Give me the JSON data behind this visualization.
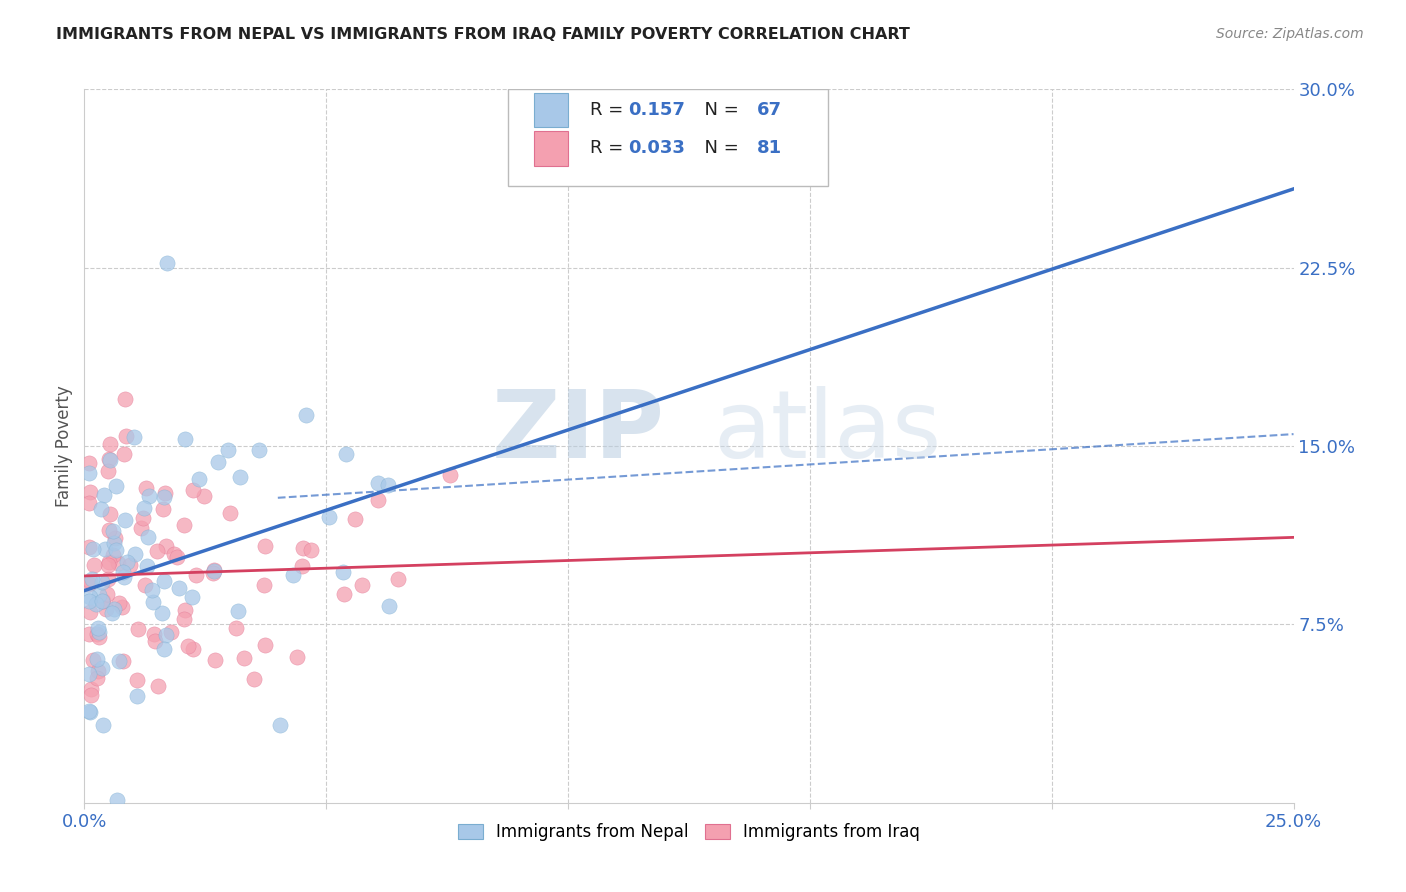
{
  "title": "IMMIGRANTS FROM NEPAL VS IMMIGRANTS FROM IRAQ FAMILY POVERTY CORRELATION CHART",
  "source": "Source: ZipAtlas.com",
  "ylabel": "Family Poverty",
  "xlim": [
    0.0,
    0.25
  ],
  "ylim": [
    0.0,
    0.3
  ],
  "ytick_right_labels": [
    "7.5%",
    "15.0%",
    "22.5%",
    "30.0%"
  ],
  "ytick_right_values": [
    0.075,
    0.15,
    0.225,
    0.3
  ],
  "nepal_R": 0.157,
  "nepal_N": 67,
  "iraq_R": 0.033,
  "iraq_N": 81,
  "nepal_color": "#a8c8e8",
  "iraq_color": "#f4a0b0",
  "nepal_line_color": "#3a6fc4",
  "iraq_line_color": "#d44060",
  "nepal_edge_color": "#7aadd0",
  "iraq_edge_color": "#e07090",
  "watermark_zip": "ZIP",
  "watermark_atlas": "atlas",
  "legend_R_color": "#000000",
  "legend_val_color": "#3a6fc4",
  "legend_N_color": "#000000",
  "legend_N_val_color": "#3a6fc4"
}
